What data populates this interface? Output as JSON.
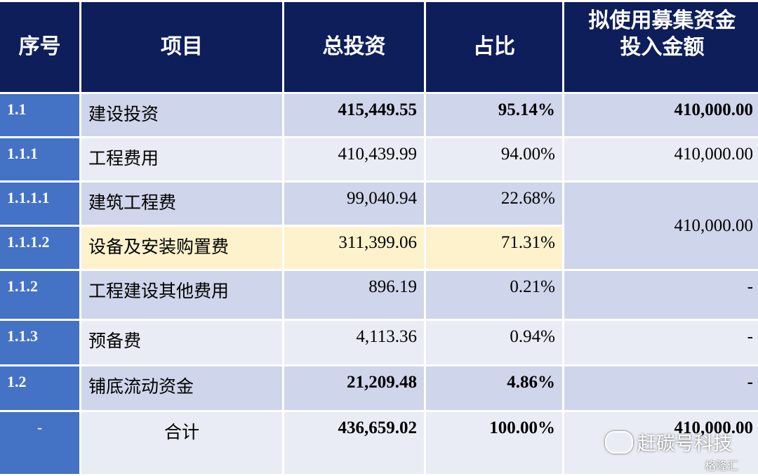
{
  "headers": {
    "seq": "序号",
    "item": "项目",
    "total": "总投资",
    "ratio": "占比",
    "fund_line1": "拟使用募集资金",
    "fund_line2": "投入金额"
  },
  "rows": [
    {
      "id": "1.1",
      "name": "建设投资",
      "total": "415,449.55",
      "ratio": "95.14%",
      "fund": "410,000.00"
    },
    {
      "id": "1.1.1",
      "name": "工程费用",
      "total": "410,439.99",
      "ratio": "94.00%",
      "fund": "410,000.00"
    },
    {
      "id": "1.1.1.1",
      "name": "建筑工程费",
      "total": "99,040.94",
      "ratio": "22.68%"
    },
    {
      "id": "1.1.1.2",
      "name": "设备及安装购置费",
      "total": "311,399.06",
      "ratio": "71.31%"
    },
    {
      "id": "1.1.2",
      "name": "工程建设其他费用",
      "total": "896.19",
      "ratio": "0.21%",
      "fund": "-"
    },
    {
      "id": "1.1.3",
      "name": "预备费",
      "total": "4,113.36",
      "ratio": "0.94%",
      "fund": "-"
    },
    {
      "id": "1.2",
      "name": "铺底流动资金",
      "total": "21,209.48",
      "ratio": "4.86%",
      "fund": "-"
    }
  ],
  "merged_fund": "410,000.00",
  "total_row": {
    "id": "-",
    "name": "合计",
    "total": "436,659.02",
    "ratio": "100.00%",
    "fund": "410,000.00"
  },
  "watermark": {
    "text": "赶碳号科技",
    "logo": "格隆汇",
    "icon": "wechat-icon"
  }
}
